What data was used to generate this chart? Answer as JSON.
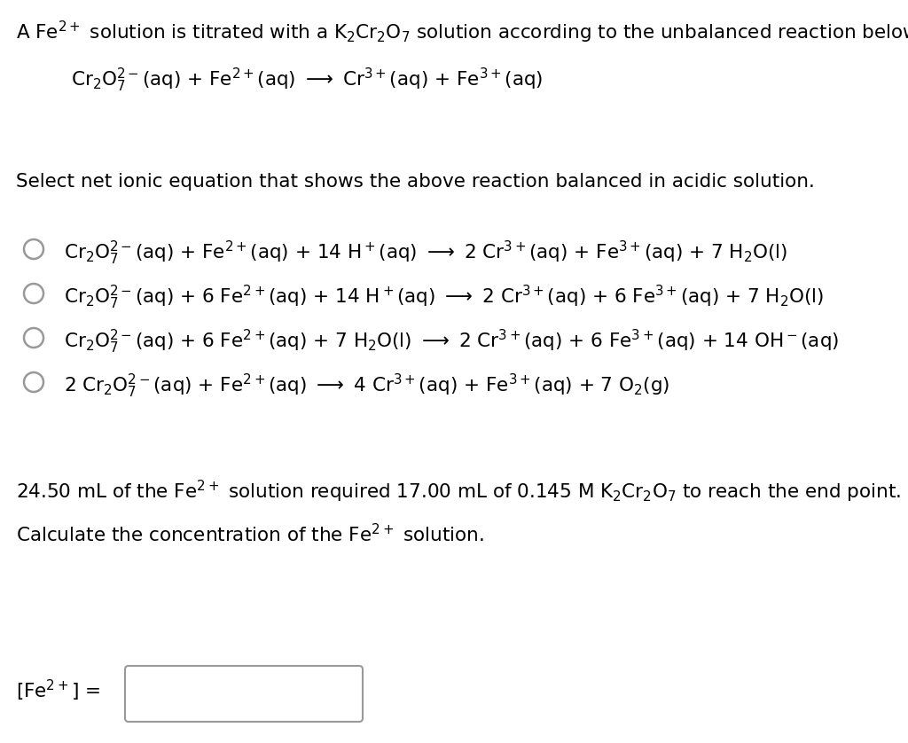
{
  "background_color": "#ffffff",
  "text_color": "#000000",
  "figsize": [
    10.24,
    8.38
  ],
  "dpi": 100,
  "fs": 15.5,
  "circle_color": "#999999",
  "box_color": "#aaaaaa"
}
